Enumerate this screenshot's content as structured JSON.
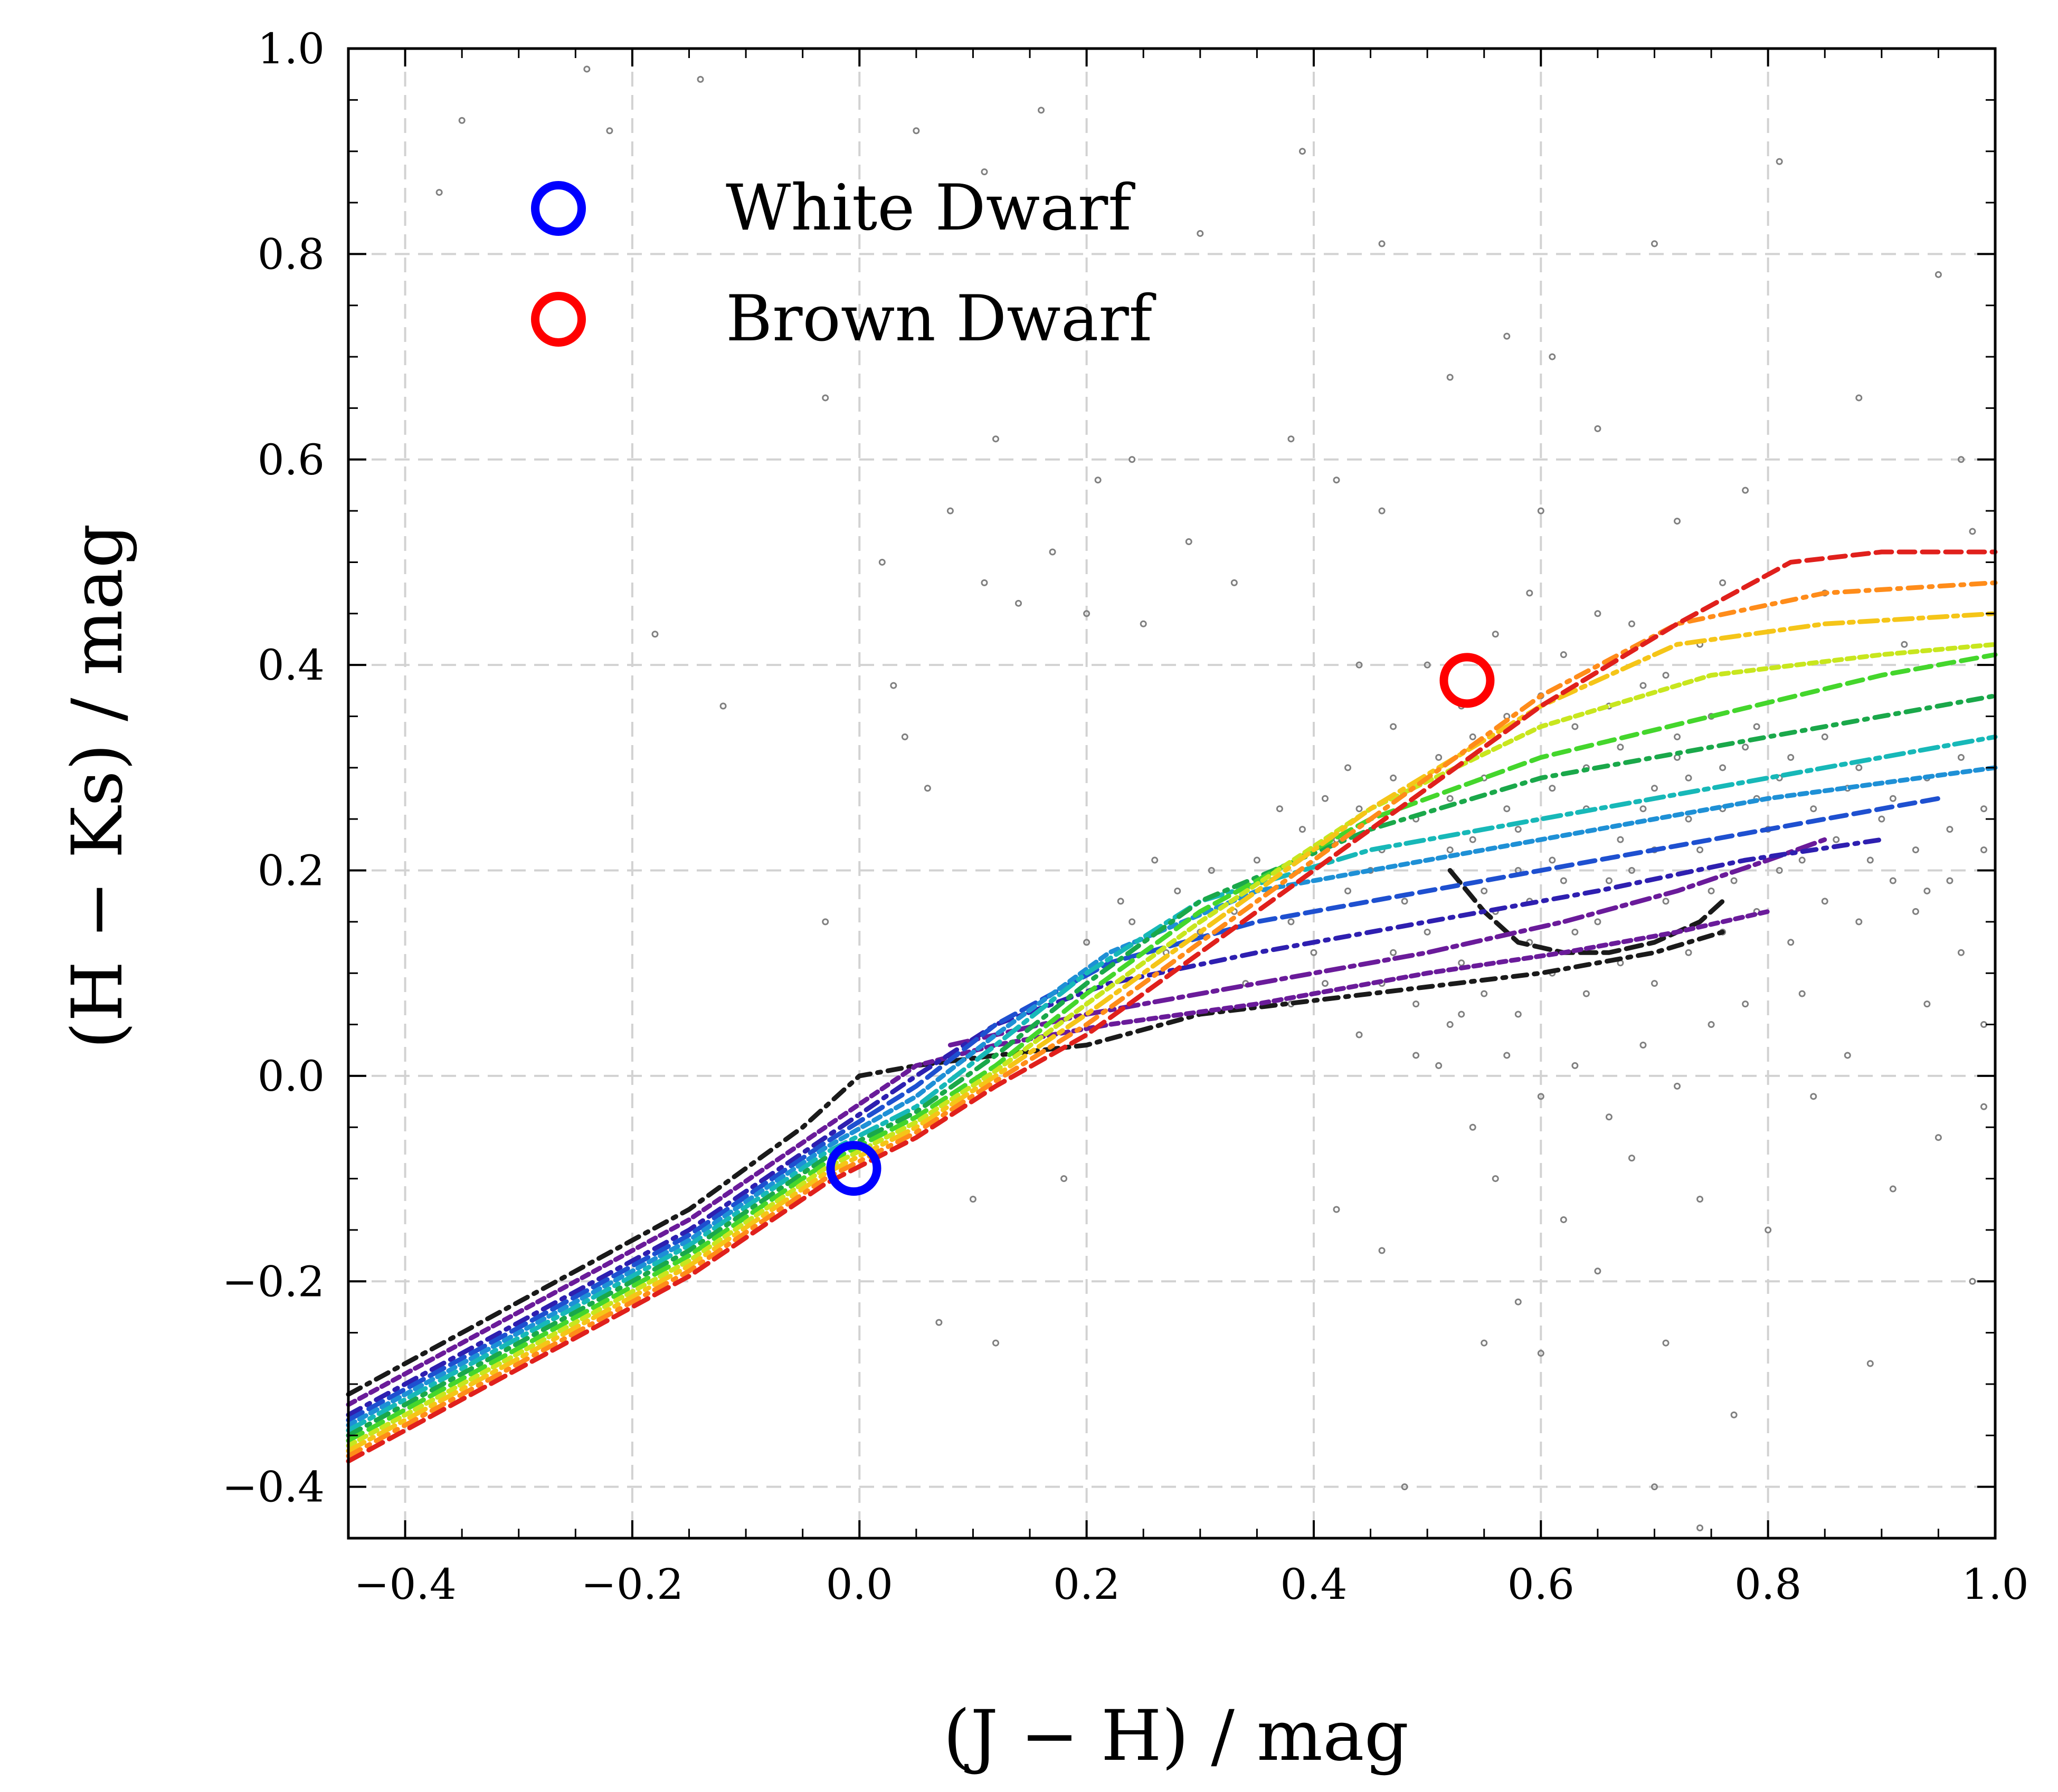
{
  "chart_data": {
    "type": "scatter",
    "title": "",
    "xlabel": "(J − H) / mag",
    "ylabel": "(H − Ks) / mag",
    "xlim": [
      -0.45,
      1.0
    ],
    "ylim": [
      -0.45,
      1.0
    ],
    "xticks": [
      -0.4,
      -0.2,
      0.0,
      0.2,
      0.4,
      0.6,
      0.8,
      1.0
    ],
    "yticks": [
      -0.4,
      -0.2,
      0.0,
      0.2,
      0.4,
      0.6,
      0.8,
      1.0
    ],
    "xtick_labels": [
      "−0.4",
      "−0.2",
      "0.0",
      "0.2",
      "0.4",
      "0.6",
      "0.8",
      "1.0"
    ],
    "ytick_labels": [
      "−0.4",
      "−0.2",
      "0.0",
      "0.2",
      "0.4",
      "0.6",
      "0.8",
      "1.0"
    ],
    "grid": true,
    "legend_position": "top-left",
    "legend": [
      {
        "label": "White Dwarf",
        "color": "#0000ff"
      },
      {
        "label": "Brown Dwarf",
        "color": "#ff0000"
      }
    ],
    "markers": [
      {
        "label": "White Dwarf",
        "x": -0.005,
        "y": -0.09,
        "color": "#0000ff"
      },
      {
        "label": "Brown Dwarf",
        "x": 0.535,
        "y": 0.385,
        "color": "#ff0000"
      }
    ],
    "scatter_color": "#808080",
    "scatter_points": [
      [
        0.45,
        0.2
      ],
      [
        0.48,
        0.17
      ],
      [
        0.52,
        0.22
      ],
      [
        0.55,
        0.18
      ],
      [
        0.58,
        0.24
      ],
      [
        0.61,
        0.21
      ],
      [
        0.64,
        0.26
      ],
      [
        0.67,
        0.23
      ],
      [
        0.7,
        0.28
      ],
      [
        0.73,
        0.25
      ],
      [
        0.76,
        0.3
      ],
      [
        0.79,
        0.27
      ],
      [
        0.5,
        0.14
      ],
      [
        0.53,
        0.11
      ],
      [
        0.56,
        0.16
      ],
      [
        0.59,
        0.13
      ],
      [
        0.62,
        0.19
      ],
      [
        0.65,
        0.15
      ],
      [
        0.68,
        0.2
      ],
      [
        0.71,
        0.17
      ],
      [
        0.74,
        0.22
      ],
      [
        0.77,
        0.19
      ],
      [
        0.8,
        0.24
      ],
      [
        0.83,
        0.21
      ],
      [
        0.42,
        0.23
      ],
      [
        0.44,
        0.26
      ],
      [
        0.47,
        0.29
      ],
      [
        0.51,
        0.31
      ],
      [
        0.54,
        0.33
      ],
      [
        0.57,
        0.35
      ],
      [
        0.6,
        0.37
      ],
      [
        0.63,
        0.34
      ],
      [
        0.66,
        0.36
      ],
      [
        0.69,
        0.38
      ],
      [
        0.72,
        0.33
      ],
      [
        0.75,
        0.35
      ],
      [
        0.78,
        0.32
      ],
      [
        0.81,
        0.29
      ],
      [
        0.84,
        0.26
      ],
      [
        0.87,
        0.28
      ],
      [
        0.9,
        0.25
      ],
      [
        0.93,
        0.22
      ],
      [
        0.96,
        0.24
      ],
      [
        0.46,
        0.09
      ],
      [
        0.49,
        0.07
      ],
      [
        0.52,
        0.05
      ],
      [
        0.55,
        0.08
      ],
      [
        0.58,
        0.06
      ],
      [
        0.61,
        0.1
      ],
      [
        0.64,
        0.08
      ],
      [
        0.67,
        0.11
      ],
      [
        0.7,
        0.09
      ],
      [
        0.73,
        0.12
      ],
      [
        0.76,
        0.14
      ],
      [
        0.79,
        0.16
      ],
      [
        0.82,
        0.13
      ],
      [
        0.85,
        0.17
      ],
      [
        0.88,
        0.15
      ],
      [
        0.91,
        0.19
      ],
      [
        0.94,
        0.18
      ],
      [
        0.36,
        0.18
      ],
      [
        0.38,
        0.15
      ],
      [
        0.4,
        0.12
      ],
      [
        0.33,
        0.16
      ],
      [
        0.3,
        0.14
      ],
      [
        0.27,
        0.12
      ],
      [
        0.24,
        0.15
      ],
      [
        0.22,
        0.11
      ],
      [
        0.35,
        0.21
      ],
      [
        0.39,
        0.24
      ],
      [
        0.43,
        0.18
      ],
      [
        0.46,
        0.22
      ],
      [
        0.49,
        0.25
      ],
      [
        0.52,
        0.27
      ],
      [
        0.55,
        0.29
      ],
      [
        0.58,
        0.2
      ],
      [
        0.61,
        0.28
      ],
      [
        0.64,
        0.3
      ],
      [
        0.67,
        0.32
      ],
      [
        0.7,
        0.22
      ],
      [
        0.73,
        0.29
      ],
      [
        0.76,
        0.26
      ],
      [
        0.79,
        0.34
      ],
      [
        0.82,
        0.31
      ],
      [
        0.85,
        0.33
      ],
      [
        0.88,
        0.3
      ],
      [
        0.91,
        0.27
      ],
      [
        0.94,
        0.29
      ],
      [
        0.97,
        0.31
      ],
      [
        0.99,
        0.26
      ],
      [
        0.5,
        0.4
      ],
      [
        0.56,
        0.43
      ],
      [
        0.62,
        0.41
      ],
      [
        0.68,
        0.44
      ],
      [
        0.74,
        0.42
      ],
      [
        0.59,
        0.47
      ],
      [
        0.65,
        0.45
      ],
      [
        0.71,
        0.39
      ],
      [
        0.53,
        0.36
      ],
      [
        0.47,
        0.34
      ],
      [
        0.57,
        0.02
      ],
      [
        0.6,
        -0.02
      ],
      [
        0.63,
        0.01
      ],
      [
        0.66,
        -0.04
      ],
      [
        0.69,
        0.03
      ],
      [
        0.72,
        -0.01
      ],
      [
        0.54,
        -0.05
      ],
      [
        0.51,
        0.01
      ],
      [
        0.75,
        0.05
      ],
      [
        0.78,
        0.07
      ],
      [
        0.56,
        -0.1
      ],
      [
        0.62,
        -0.14
      ],
      [
        0.68,
        -0.08
      ],
      [
        0.74,
        -0.12
      ],
      [
        0.58,
        -0.22
      ],
      [
        0.65,
        -0.19
      ],
      [
        0.71,
        -0.26
      ],
      [
        0.6,
        -0.27
      ],
      [
        0.8,
        -0.15
      ],
      [
        0.84,
        -0.02
      ],
      [
        0.42,
        0.58
      ],
      [
        0.38,
        0.62
      ],
      [
        0.46,
        0.55
      ],
      [
        0.52,
        0.68
      ],
      [
        0.57,
        0.72
      ],
      [
        0.33,
        0.48
      ],
      [
        0.29,
        0.52
      ],
      [
        0.25,
        0.44
      ],
      [
        0.21,
        0.58
      ],
      [
        0.17,
        0.51
      ],
      [
        0.12,
        0.62
      ],
      [
        0.08,
        0.55
      ],
      [
        0.02,
        0.5
      ],
      [
        -0.03,
        0.66
      ],
      [
        0.05,
        0.92
      ],
      [
        0.11,
        0.88
      ],
      [
        0.16,
        0.94
      ],
      [
        -0.14,
        0.97
      ],
      [
        -0.22,
        0.92
      ],
      [
        -0.35,
        0.93
      ],
      [
        -0.37,
        0.86
      ],
      [
        -0.24,
        0.98
      ],
      [
        0.3,
        0.82
      ],
      [
        0.39,
        0.9
      ],
      [
        0.46,
        0.81
      ],
      [
        0.61,
        0.7
      ],
      [
        0.7,
        0.81
      ],
      [
        0.81,
        0.89
      ],
      [
        0.88,
        0.66
      ],
      [
        0.95,
        0.78
      ],
      [
        0.97,
        0.6
      ],
      [
        0.78,
        0.57
      ],
      [
        0.72,
        0.54
      ],
      [
        0.85,
        0.47
      ],
      [
        0.92,
        0.42
      ],
      [
        0.98,
        0.53
      ],
      [
        0.99,
        0.05
      ],
      [
        0.95,
        -0.06
      ],
      [
        0.91,
        -0.11
      ],
      [
        0.97,
        0.12
      ],
      [
        0.87,
        0.02
      ],
      [
        0.83,
        0.08
      ],
      [
        0.94,
        0.07
      ],
      [
        0.99,
        -0.03
      ],
      [
        0.98,
        -0.2
      ],
      [
        0.89,
        -0.28
      ],
      [
        0.77,
        -0.33
      ],
      [
        0.7,
        -0.4
      ],
      [
        0.74,
        -0.44
      ],
      [
        0.48,
        -0.4
      ],
      [
        0.55,
        -0.26
      ],
      [
        0.42,
        -0.13
      ],
      [
        0.46,
        -0.17
      ],
      [
        0.12,
        -0.26
      ],
      [
        0.07,
        -0.24
      ],
      [
        0.18,
        -0.1
      ],
      [
        0.1,
        -0.12
      ],
      [
        -0.18,
        0.43
      ],
      [
        -0.12,
        0.36
      ],
      [
        0.04,
        0.33
      ],
      [
        0.06,
        0.28
      ],
      [
        0.03,
        0.38
      ],
      [
        -0.03,
        0.15
      ],
      [
        0.2,
        0.45
      ],
      [
        0.14,
        0.46
      ],
      [
        0.11,
        0.48
      ],
      [
        0.24,
        0.6
      ],
      [
        0.6,
        0.55
      ],
      [
        0.65,
        0.63
      ],
      [
        0.76,
        0.48
      ],
      [
        0.44,
        0.4
      ],
      [
        0.43,
        0.3
      ],
      [
        0.41,
        0.27
      ],
      [
        0.37,
        0.26
      ],
      [
        0.31,
        0.2
      ],
      [
        0.28,
        0.18
      ],
      [
        0.26,
        0.21
      ],
      [
        0.23,
        0.17
      ],
      [
        0.2,
        0.13
      ],
      [
        0.34,
        0.09
      ],
      [
        0.38,
        0.07
      ],
      [
        0.44,
        0.04
      ],
      [
        0.49,
        0.02
      ],
      [
        0.53,
        0.06
      ],
      [
        0.47,
        0.12
      ],
      [
        0.41,
        0.09
      ],
      [
        0.59,
        0.17
      ],
      [
        0.63,
        0.14
      ],
      [
        0.69,
        0.26
      ],
      [
        0.75,
        0.18
      ],
      [
        0.81,
        0.2
      ],
      [
        0.86,
        0.23
      ],
      [
        0.89,
        0.21
      ],
      [
        0.93,
        0.16
      ],
      [
        0.96,
        0.19
      ],
      [
        0.99,
        0.22
      ],
      [
        0.54,
        0.23
      ],
      [
        0.57,
        0.26
      ],
      [
        0.66,
        0.19
      ],
      [
        0.72,
        0.31
      ]
    ],
    "series": [
      {
        "color": "#1a1a1a",
        "x": [
          -0.45,
          -0.3,
          -0.15,
          -0.05,
          0.0,
          0.05,
          0.12,
          0.2,
          0.3,
          0.45,
          0.6,
          0.7,
          0.76
        ],
        "y": [
          -0.31,
          -0.22,
          -0.13,
          -0.05,
          0.0,
          0.01,
          0.02,
          0.03,
          0.06,
          0.08,
          0.1,
          0.12,
          0.14
        ]
      },
      {
        "color": "#1a1a1a",
        "x": [
          0.52,
          0.55,
          0.58,
          0.62,
          0.66,
          0.7,
          0.74,
          0.76
        ],
        "y": [
          0.2,
          0.16,
          0.13,
          0.12,
          0.12,
          0.13,
          0.15,
          0.17
        ]
      },
      {
        "color": "#6a1b9a",
        "x": [
          -0.45,
          -0.3,
          -0.15,
          -0.03,
          0.05,
          0.12,
          0.22,
          0.35,
          0.5,
          0.62,
          0.72,
          0.8
        ],
        "y": [
          -0.32,
          -0.23,
          -0.14,
          -0.05,
          0.01,
          0.03,
          0.05,
          0.07,
          0.1,
          0.12,
          0.14,
          0.16
        ]
      },
      {
        "color": "#6a1b9a",
        "x": [
          0.08,
          0.2,
          0.35,
          0.5,
          0.62,
          0.72,
          0.8,
          0.85
        ],
        "y": [
          0.03,
          0.06,
          0.09,
          0.12,
          0.15,
          0.18,
          0.21,
          0.23
        ]
      },
      {
        "color": "#2e1fb0",
        "x": [
          -0.45,
          -0.3,
          -0.15,
          -0.03,
          0.05,
          0.12,
          0.22,
          0.35,
          0.5,
          0.65,
          0.78,
          0.9
        ],
        "y": [
          -0.33,
          -0.24,
          -0.15,
          -0.06,
          0.0,
          0.05,
          0.09,
          0.12,
          0.15,
          0.18,
          0.21,
          0.23
        ]
      },
      {
        "color": "#1e50d0",
        "x": [
          -0.45,
          -0.3,
          -0.15,
          -0.03,
          0.05,
          0.12,
          0.22,
          0.35,
          0.5,
          0.65,
          0.8,
          0.95
        ],
        "y": [
          -0.335,
          -0.245,
          -0.155,
          -0.065,
          -0.01,
          0.05,
          0.11,
          0.15,
          0.18,
          0.21,
          0.24,
          0.27
        ]
      },
      {
        "color": "#1e90d6",
        "x": [
          -0.45,
          -0.3,
          -0.15,
          -0.03,
          0.05,
          0.12,
          0.22,
          0.35,
          0.5,
          0.65,
          0.8,
          1.0
        ],
        "y": [
          -0.34,
          -0.25,
          -0.16,
          -0.07,
          -0.02,
          0.04,
          0.12,
          0.18,
          0.21,
          0.24,
          0.27,
          0.3
        ]
      },
      {
        "color": "#17b8b8",
        "x": [
          -0.45,
          -0.3,
          -0.15,
          -0.03,
          0.05,
          0.12,
          0.2,
          0.3,
          0.45,
          0.6,
          0.75,
          0.9,
          1.0
        ],
        "y": [
          -0.345,
          -0.255,
          -0.165,
          -0.075,
          -0.03,
          0.03,
          0.1,
          0.17,
          0.22,
          0.25,
          0.28,
          0.31,
          0.33
        ]
      },
      {
        "color": "#1aa84a",
        "x": [
          -0.45,
          -0.3,
          -0.15,
          -0.03,
          0.05,
          0.12,
          0.2,
          0.3,
          0.45,
          0.6,
          0.75,
          0.9,
          1.0
        ],
        "y": [
          -0.35,
          -0.26,
          -0.17,
          -0.08,
          -0.035,
          0.02,
          0.09,
          0.17,
          0.24,
          0.29,
          0.32,
          0.35,
          0.37
        ]
      },
      {
        "color": "#44d62c",
        "x": [
          -0.45,
          -0.3,
          -0.15,
          -0.03,
          0.05,
          0.12,
          0.2,
          0.3,
          0.45,
          0.6,
          0.75,
          0.9,
          1.0
        ],
        "y": [
          -0.355,
          -0.265,
          -0.175,
          -0.085,
          -0.04,
          0.01,
          0.08,
          0.16,
          0.25,
          0.31,
          0.35,
          0.39,
          0.41
        ]
      },
      {
        "color": "#c8e61e",
        "x": [
          -0.45,
          -0.3,
          -0.15,
          -0.03,
          0.05,
          0.12,
          0.2,
          0.3,
          0.45,
          0.6,
          0.75,
          0.9,
          1.0
        ],
        "y": [
          -0.36,
          -0.27,
          -0.18,
          -0.09,
          -0.045,
          0.005,
          0.07,
          0.15,
          0.26,
          0.34,
          0.39,
          0.41,
          0.42
        ]
      },
      {
        "color": "#f5c518",
        "x": [
          -0.45,
          -0.3,
          -0.15,
          -0.03,
          0.05,
          0.12,
          0.2,
          0.3,
          0.45,
          0.6,
          0.72,
          0.85,
          1.0
        ],
        "y": [
          -0.365,
          -0.275,
          -0.185,
          -0.095,
          -0.05,
          0.0,
          0.06,
          0.14,
          0.26,
          0.36,
          0.42,
          0.44,
          0.45
        ]
      },
      {
        "color": "#ff8c1a",
        "x": [
          -0.45,
          -0.3,
          -0.15,
          -0.03,
          0.05,
          0.12,
          0.2,
          0.3,
          0.45,
          0.6,
          0.72,
          0.85,
          1.0
        ],
        "y": [
          -0.37,
          -0.28,
          -0.19,
          -0.1,
          -0.055,
          -0.005,
          0.05,
          0.13,
          0.25,
          0.37,
          0.44,
          0.47,
          0.48
        ]
      },
      {
        "color": "#e0201c",
        "x": [
          -0.45,
          -0.3,
          -0.15,
          -0.03,
          0.05,
          0.12,
          0.2,
          0.3,
          0.45,
          0.6,
          0.72,
          0.82,
          0.9,
          1.0
        ],
        "y": [
          -0.375,
          -0.285,
          -0.195,
          -0.105,
          -0.06,
          -0.01,
          0.04,
          0.12,
          0.24,
          0.36,
          0.44,
          0.5,
          0.51,
          0.51
        ]
      }
    ]
  }
}
